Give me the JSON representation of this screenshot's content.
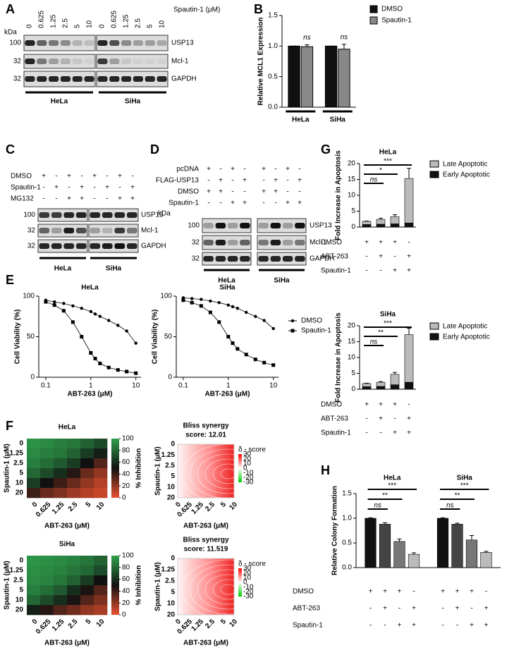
{
  "panels": {
    "A": {
      "label": "A",
      "kda": "kDa",
      "treatment": "Spautin-1 (μM)",
      "lanes": [
        "0",
        "0.625",
        "1.25",
        "2.5",
        "5",
        "10"
      ],
      "markers": [
        "100",
        "32",
        "32"
      ],
      "proteins": [
        "USP13",
        "Mcl-1",
        "GAPDH"
      ],
      "cells": [
        "HeLa",
        "SiHa"
      ]
    },
    "B": {
      "label": "B"
    },
    "C": {
      "label": "C",
      "rows": [
        {
          "name": "DMSO",
          "marks": [
            "+",
            "-",
            "+",
            "-"
          ]
        },
        {
          "name": "Spautin-1",
          "marks": [
            "-",
            "+",
            "-",
            "+"
          ]
        },
        {
          "name": "MG132",
          "marks": [
            "-",
            "-",
            "+",
            "+"
          ]
        }
      ],
      "markers": [
        "100",
        "32",
        "32"
      ],
      "proteins": [
        "USP13",
        "Mcl-1",
        "GAPDH"
      ],
      "cells": [
        "HeLa",
        "SiHa"
      ]
    },
    "D": {
      "label": "D",
      "kda": "kDa",
      "rows": [
        {
          "name": "pcDNA",
          "marks": [
            "+",
            "-",
            "+",
            "-"
          ]
        },
        {
          "name": "FLAG-USP13",
          "marks": [
            "-",
            "+",
            "-",
            "+"
          ]
        },
        {
          "name": "DMSO",
          "marks": [
            "+",
            "+",
            "-",
            "-"
          ]
        },
        {
          "name": "Spautin-1",
          "marks": [
            "-",
            "-",
            "+",
            "+"
          ]
        }
      ],
      "markers": [
        "100",
        "32",
        "32"
      ],
      "proteins": [
        "USP13",
        "Mcl-1",
        "GAPDH"
      ],
      "cells": [
        "HeLa",
        "SiHa"
      ]
    },
    "E": {
      "label": "E"
    },
    "F": {
      "label": "F",
      "bliss": [
        {
          "title": [
            "Bliss synergy",
            "score: 12.01"
          ]
        },
        {
          "title": [
            "Bliss synergy",
            "score: 11.519"
          ]
        }
      ],
      "bliss_scale": {
        "label": "δ - score",
        "ticks": [
          "30",
          "20",
          "10",
          "0",
          "-10",
          "-20",
          "-30"
        ]
      }
    },
    "G": {
      "label": "G"
    },
    "H": {
      "label": "H"
    }
  },
  "chart_data": [
    {
      "type": "bar",
      "ylabel": "Relative MCL1 Expression",
      "categories": [
        "HeLa",
        "SiHa"
      ],
      "series": [
        {
          "name": "DMSO",
          "color": "#111111",
          "values": [
            1.0,
            1.0
          ],
          "errors": [
            0.0,
            0.0
          ]
        },
        {
          "name": "Spautin-1",
          "color": "#888888",
          "values": [
            0.99,
            0.95
          ],
          "errors": [
            0.03,
            0.08
          ]
        }
      ],
      "ylim": [
        0,
        1.5
      ],
      "yticks": [
        {
          "value": 0,
          "label": "0.0"
        },
        {
          "value": 0.5,
          "label": "0.5"
        },
        {
          "value": 1,
          "label": "1.0"
        },
        {
          "value": 1.5,
          "label": "1.5"
        }
      ],
      "annotations": [
        "ns",
        "ns"
      ],
      "legend": "right"
    },
    {
      "type": "line",
      "title": "HeLa",
      "xlabel": "ABT-263 (μM)",
      "ylabel": "Cell Viability (%)",
      "xlog": true,
      "x": [
        0.1,
        0.156,
        0.25,
        0.4,
        0.625,
        1,
        1.25,
        1.6,
        2.5,
        4,
        6.25,
        10
      ],
      "series": [
        {
          "color": "#000000",
          "marker": "circle",
          "values": [
            95,
            93,
            91,
            88,
            85,
            81,
            78,
            75,
            70,
            64,
            57,
            42
          ]
        },
        {
          "color": "#000000",
          "marker": "square",
          "values": [
            93,
            89,
            82,
            68,
            50,
            30,
            23,
            17,
            12,
            9,
            7,
            5
          ]
        }
      ],
      "xlim": [
        0.07,
        13
      ],
      "xticks": [
        0.1,
        1,
        10
      ],
      "ylim": [
        0,
        100
      ],
      "yticks": [
        0,
        50,
        100
      ]
    },
    {
      "type": "line",
      "title": "SiHa",
      "xlabel": "ABT-263 (μM)",
      "ylabel": "Cell Viability (%)",
      "xlog": true,
      "x": [
        0.1,
        0.156,
        0.25,
        0.4,
        0.625,
        1,
        1.25,
        1.6,
        2.5,
        4,
        6.25,
        10
      ],
      "series": [
        {
          "name": "DMSO",
          "color": "#000000",
          "marker": "circle",
          "values": [
            98,
            97,
            96,
            94,
            92,
            89,
            87,
            85,
            80,
            75,
            70,
            60
          ]
        },
        {
          "name": "Spautin-1",
          "color": "#000000",
          "marker": "square",
          "values": [
            95,
            92,
            88,
            80,
            68,
            50,
            42,
            35,
            28,
            22,
            18,
            15
          ]
        }
      ],
      "xlim": [
        0.07,
        13
      ],
      "xticks": [
        0.1,
        1,
        10
      ],
      "ylim": [
        0,
        100
      ],
      "yticks": [
        0,
        50,
        100
      ],
      "legend": "right"
    },
    {
      "type": "heatmap",
      "title": "HeLa",
      "xlabel": "ABT-263 (μM)",
      "ylabel": "Spautin-1 (μM)",
      "x": [
        "0",
        "0.625",
        "1.25",
        "2.5",
        "5",
        "10"
      ],
      "y": [
        "0",
        "1.25",
        "2.5",
        "5",
        "10",
        "20"
      ],
      "values": [
        [
          95,
          92,
          88,
          85,
          78,
          70
        ],
        [
          92,
          88,
          85,
          78,
          65,
          55
        ],
        [
          88,
          82,
          75,
          65,
          50,
          35
        ],
        [
          80,
          70,
          60,
          45,
          30,
          20
        ],
        [
          65,
          50,
          40,
          30,
          20,
          12
        ],
        [
          40,
          30,
          25,
          18,
          12,
          8
        ]
      ],
      "colorbar": {
        "label": "% Inhibition",
        "lim": [
          0,
          100
        ],
        "ticks": [
          0,
          20,
          40,
          60,
          80,
          100
        ],
        "colors": [
          "#e8502e",
          "#111111",
          "#2fa04c"
        ]
      }
    },
    {
      "type": "heatmap",
      "title": "SiHa",
      "xlabel": "ABT-263 (μM)",
      "ylabel": "Spautin-1 (μM)",
      "x": [
        "0",
        "0.625",
        "1.25",
        "2.5",
        "5",
        "10"
      ],
      "y": [
        "0",
        "1.25",
        "2.5",
        "5",
        "10",
        "20"
      ],
      "values": [
        [
          96,
          94,
          92,
          90,
          85,
          78
        ],
        [
          94,
          92,
          90,
          85,
          80,
          70
        ],
        [
          92,
          90,
          85,
          78,
          65,
          50
        ],
        [
          88,
          82,
          75,
          60,
          48,
          35
        ],
        [
          80,
          70,
          60,
          48,
          35,
          25
        ],
        [
          55,
          45,
          35,
          28,
          20,
          15
        ]
      ],
      "colorbar": {
        "label": "% Inhibition",
        "lim": [
          0,
          100
        ],
        "ticks": [
          0,
          20,
          40,
          60,
          80,
          100
        ],
        "colors": [
          "#e8502e",
          "#111111",
          "#2fa04c"
        ]
      }
    },
    {
      "type": "stacked_bar",
      "title": "HeLa",
      "ylabel": "Fold Increase in Apoptosis",
      "categories": [
        null,
        null,
        null,
        null
      ],
      "series": [
        {
          "name": "Early Apoptotic",
          "color": "#111111",
          "values": [
            0.8,
            0.9,
            1.0,
            1.3
          ]
        },
        {
          "name": "Late Apoptotic",
          "color": "#bbbbbb",
          "values": [
            1.0,
            1.5,
            2.3,
            14.0
          ],
          "errors": [
            0.1,
            0.4,
            0.6,
            3.2
          ]
        }
      ],
      "ylim": [
        0,
        20
      ],
      "yticks": [
        0,
        5,
        10,
        15,
        20
      ],
      "legend": "right",
      "significance": [
        "***",
        "*",
        "ns"
      ],
      "conditions": [
        {
          "name": "DMSO",
          "marks": [
            "+",
            "+",
            "+",
            "-"
          ]
        },
        {
          "name": "ABT-263",
          "marks": [
            "-",
            "+",
            "-",
            "+"
          ]
        },
        {
          "name": "Spautin-1",
          "marks": [
            "-",
            "-",
            "+",
            "+"
          ]
        }
      ]
    },
    {
      "type": "stacked_bar",
      "title": "SiHa",
      "ylabel": "Fold Increase in Apoptosis",
      "categories": [
        null,
        null,
        null,
        null
      ],
      "series": [
        {
          "name": "Early Apoptotic",
          "color": "#111111",
          "values": [
            0.8,
            0.9,
            1.4,
            2.2
          ]
        },
        {
          "name": "Late Apoptotic",
          "color": "#bbbbbb",
          "values": [
            1.0,
            1.3,
            3.3,
            15.0
          ],
          "errors": [
            0.1,
            0.2,
            0.6,
            2.0
          ]
        }
      ],
      "ylim": [
        0,
        20
      ],
      "yticks": [
        0,
        5,
        10,
        15,
        20
      ],
      "legend": "right",
      "significance": [
        "***",
        "**",
        "ns"
      ],
      "conditions": [
        {
          "name": "DMSO",
          "marks": [
            "+",
            "+",
            "+",
            "-"
          ]
        },
        {
          "name": "ABT-263",
          "marks": [
            "-",
            "+",
            "-",
            "+"
          ]
        },
        {
          "name": "Spautin-1",
          "marks": [
            "-",
            "-",
            "+",
            "+"
          ]
        }
      ]
    },
    {
      "type": "grouped_bar",
      "ylabel": "Relative Colony Formation",
      "groups": [
        {
          "name": "HeLa",
          "values": [
            1.0,
            0.88,
            0.53,
            0.27
          ],
          "errors": [
            0.01,
            0.03,
            0.05,
            0.03
          ],
          "significance": [
            "***",
            "**",
            "ns"
          ]
        },
        {
          "name": "SiHa",
          "values": [
            1.0,
            0.88,
            0.56,
            0.31
          ],
          "errors": [
            0.01,
            0.02,
            0.09,
            0.02
          ],
          "significance": [
            "***",
            "**",
            "ns"
          ]
        }
      ],
      "colors": [
        "#111111",
        "#444444",
        "#777777",
        "#bbbbbb"
      ],
      "ylim": [
        0,
        1.5
      ],
      "yticks": [
        {
          "value": 0,
          "label": "0.0"
        },
        {
          "value": 0.5,
          "label": "0.5"
        },
        {
          "value": 1,
          "label": "1.0"
        },
        {
          "value": 1.5,
          "label": "1.5"
        }
      ],
      "conditions": [
        {
          "name": "DMSO",
          "marks": [
            "+",
            "+",
            "+",
            "-"
          ]
        },
        {
          "name": "ABT-263",
          "marks": [
            "-",
            "+",
            "-",
            "+"
          ]
        },
        {
          "name": "Spautin-1",
          "marks": [
            "-",
            "-",
            "+",
            "+"
          ]
        }
      ]
    }
  ]
}
